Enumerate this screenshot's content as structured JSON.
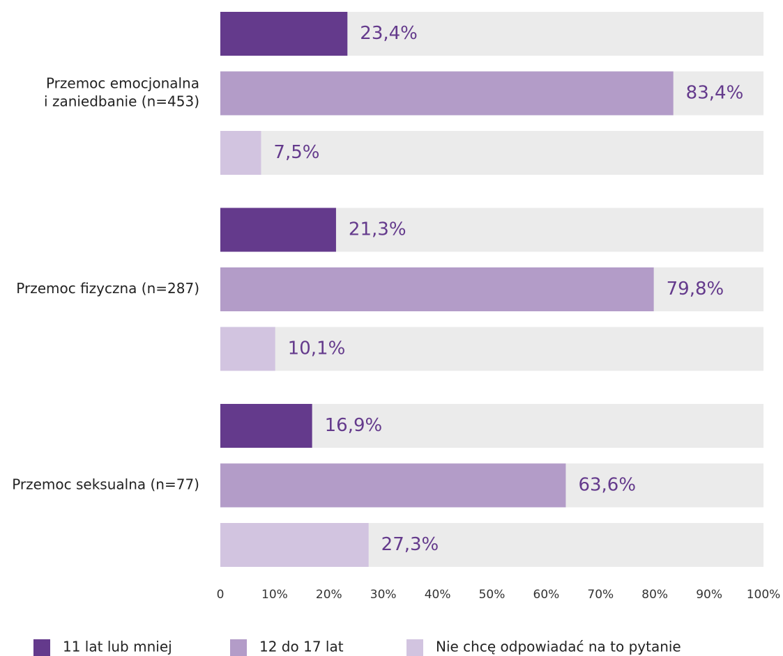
{
  "chart_data": {
    "type": "barh",
    "categories": [
      [
        "Przemoc emocjonalna",
        "i zaniedbanie (n=453)"
      ],
      [
        "Przemoc fizyczna (n=287)"
      ],
      [
        "Przemoc seksualna (n=77)"
      ]
    ],
    "series": [
      {
        "name": "11 lat lub mniej",
        "color": "#643a8c",
        "values": [
          23.4,
          21.3,
          16.9
        ],
        "value_labels": [
          "23,4%",
          "21,3%",
          "16,9%"
        ]
      },
      {
        "name": "12 do 17 lat",
        "color": "#b39cc8",
        "values": [
          83.4,
          79.8,
          63.6
        ],
        "value_labels": [
          "83,4%",
          "79,8%",
          "63,6%"
        ]
      },
      {
        "name": "Nie chcę odpowiadać na to pytanie",
        "color": "#d2c4e0",
        "values": [
          7.5,
          10.1,
          27.3
        ],
        "value_labels": [
          "7,5%",
          "10,1%",
          "27,3%"
        ]
      }
    ],
    "background_color": "#ebebeb",
    "xlim": [
      0,
      100
    ],
    "xticks": [
      0,
      {
        "value": 10,
        "label": "10%"
      },
      {
        "value": 20,
        "label": "20%"
      },
      {
        "value": 30,
        "label": "30%"
      },
      {
        "value": 40,
        "label": "40%"
      },
      {
        "value": 50,
        "label": "50%"
      },
      {
        "value": 60,
        "label": "60%"
      },
      {
        "value": 70,
        "label": "70%"
      },
      {
        "value": 80,
        "label": "80%"
      },
      {
        "value": 90,
        "label": "90%"
      },
      {
        "value": 100,
        "label": "100%"
      }
    ],
    "legend": "bottom"
  }
}
